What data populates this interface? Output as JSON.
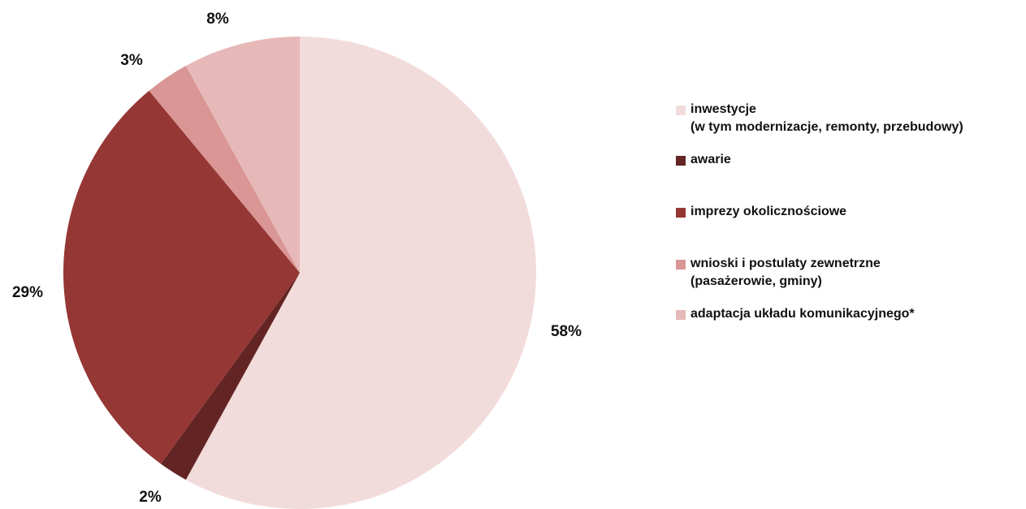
{
  "chart_data": {
    "type": "pie",
    "title": "",
    "slices": [
      {
        "label": "inwestycje\n(w tym modernizacje, remonty, przebudowy)",
        "value": 58,
        "display": "58%",
        "color": "#f2dcdb"
      },
      {
        "label": "awarie",
        "value": 2,
        "display": "2%",
        "color": "#632523"
      },
      {
        "label": "imprezy okolicznościowe",
        "value": 29,
        "display": "29%",
        "color": "#953735"
      },
      {
        "label": "wnioski i postulaty zewnetrzne\n(pasażerowie, gminy)",
        "value": 3,
        "display": "3%",
        "color": "#d99694"
      },
      {
        "label": "adaptacja układu komunikacyjnego*",
        "value": 8,
        "display": "8%",
        "color": "#e6b9b8"
      }
    ],
    "start_angle_deg": 0,
    "direction": "clockwise",
    "legend_position": "right"
  }
}
